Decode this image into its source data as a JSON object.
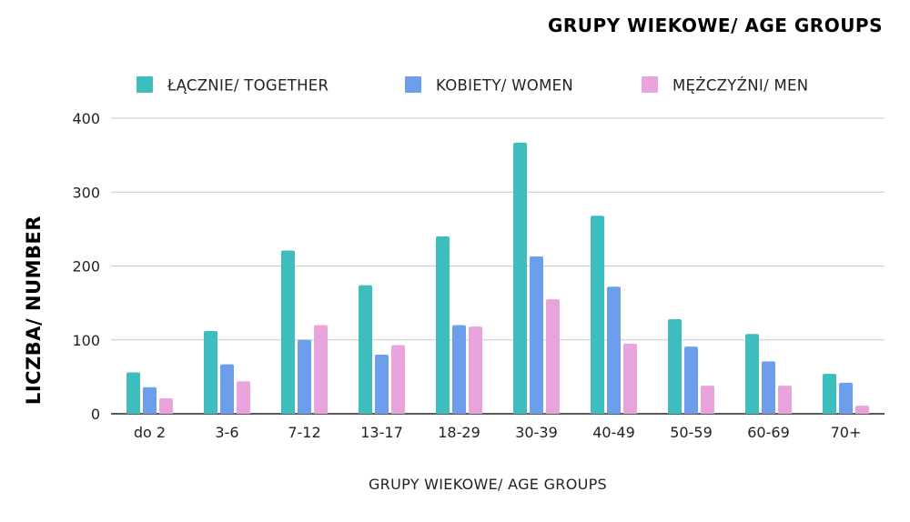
{
  "chart_data": {
    "type": "bar",
    "title": "GRUPY WIEKOWE/ AGE GROUPS",
    "xlabel": "GRUPY WIEKOWE/ AGE GROUPS",
    "ylabel": "LICZBA/ NUMBER",
    "ylim": [
      0,
      400
    ],
    "yticks": [
      "0",
      "100",
      "200",
      "300",
      "400"
    ],
    "grid": true,
    "legend_position": "top",
    "categories": [
      "do 2",
      "3-6",
      "7-12",
      "13-17",
      "18-29",
      "30-39",
      "40-49",
      "50-59",
      "60-69",
      "70+"
    ],
    "series": [
      {
        "name": "ŁĄCZNIE/ TOGETHER",
        "color": "#3dbdbd",
        "values": [
          56,
          112,
          221,
          174,
          240,
          367,
          268,
          128,
          108,
          54
        ]
      },
      {
        "name": "KOBIETY/ WOMEN",
        "color": "#6d9eeb",
        "values": [
          36,
          67,
          100,
          80,
          120,
          213,
          172,
          91,
          71,
          42
        ]
      },
      {
        "name": "MĘŻCZYŹNI/ MEN",
        "color": "#e9a3dd",
        "values": [
          21,
          44,
          120,
          93,
          118,
          155,
          95,
          38,
          38,
          11
        ]
      }
    ]
  }
}
